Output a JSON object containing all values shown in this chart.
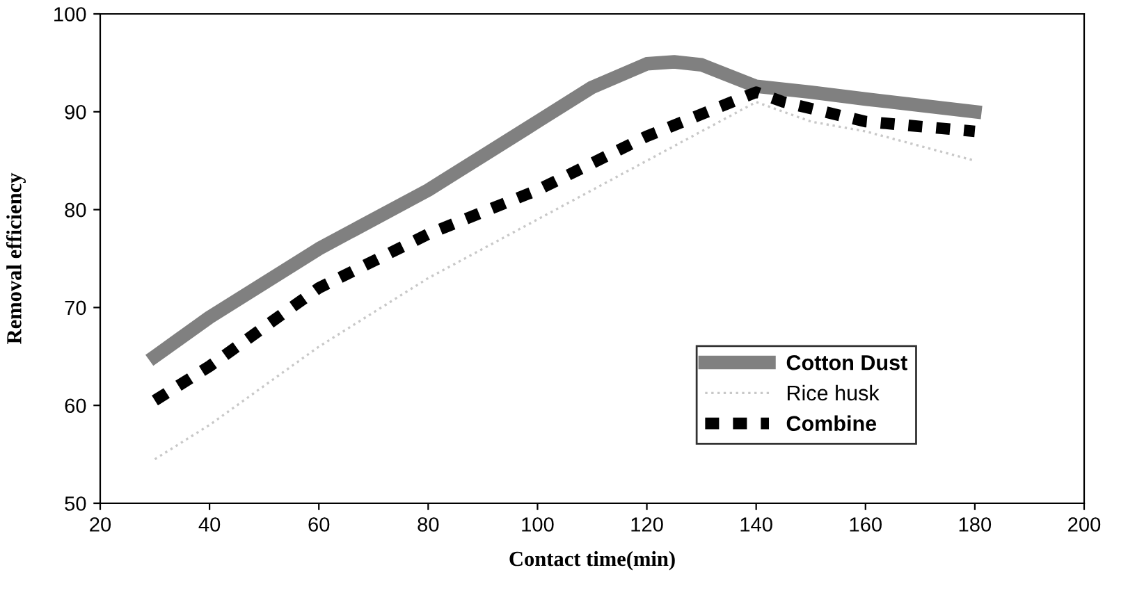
{
  "chart_data": {
    "type": "line",
    "xlabel": "Contact time(min)",
    "ylabel": "Removal efficiency",
    "xlim": [
      20,
      200
    ],
    "xticks": [
      20,
      40,
      60,
      80,
      100,
      120,
      140,
      160,
      180,
      200
    ],
    "ylim": [
      50,
      100
    ],
    "yticks": [
      50,
      60,
      70,
      80,
      90,
      100
    ],
    "grid": false,
    "legend": "lower right",
    "series": [
      {
        "name": "Cotton Dust",
        "color": "#808080",
        "line_style": "solid",
        "x": [
          30,
          40,
          60,
          80,
          90,
          100,
          110,
          120,
          125,
          130,
          140,
          150,
          160,
          180
        ],
        "values": [
          65,
          69,
          76,
          82,
          85.5,
          89,
          92.5,
          94.9,
          95.1,
          94.8,
          92.6,
          92,
          91.3,
          90
        ]
      },
      {
        "name": "Rice husk",
        "color": "#c8c8c8",
        "line_style": "dotted",
        "x": [
          30,
          40,
          60,
          80,
          100,
          120,
          140,
          150,
          160,
          180
        ],
        "values": [
          54.5,
          58,
          66,
          73,
          79,
          85,
          91,
          89,
          88,
          85
        ]
      },
      {
        "name": "Combine",
        "color": "#000000",
        "line_style": "dashed",
        "x": [
          30,
          40,
          60,
          80,
          100,
          120,
          140,
          145,
          160,
          180
        ],
        "values": [
          60.5,
          64,
          72,
          77.5,
          82,
          87.5,
          92,
          91,
          89,
          88
        ]
      }
    ]
  }
}
